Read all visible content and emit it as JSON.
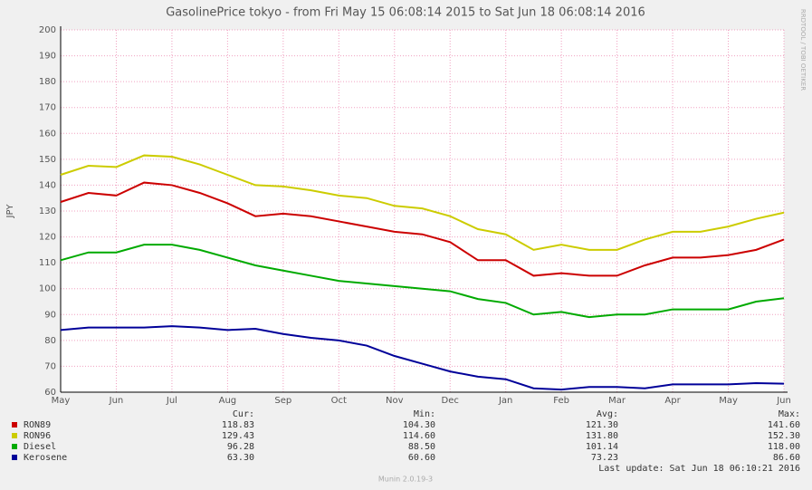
{
  "chart_data": {
    "type": "line",
    "title": "GasolinePrice tokyo - from Fri May 15 06:08:14 2015 to Sat Jun 18 06:08:14 2016",
    "y_label": "JPY",
    "side_note": "RRDTOOL / TOBI OETIKER",
    "footer": "Munin 2.0.19-3",
    "last_update": "Last update:  Sat Jun 18 06:10:21 2016",
    "month_labels": [
      "May",
      "Jun",
      "Jul",
      "Aug",
      "Sep",
      "Oct",
      "Nov",
      "Dec",
      "Jan",
      "Feb",
      "Mar",
      "Apr",
      "May",
      "Jun"
    ],
    "ylim": [
      60,
      200
    ],
    "yticks": [
      60,
      70,
      80,
      90,
      100,
      110,
      120,
      130,
      140,
      150,
      160,
      170,
      180,
      190,
      200
    ],
    "grid": true,
    "legend_headers": [
      "Cur:",
      "Min:",
      "Avg:",
      "Max:"
    ],
    "series": [
      {
        "name": "RON89",
        "color": "#cc0000",
        "values": [
          133.5,
          137,
          136,
          141,
          140,
          137,
          133,
          128,
          129,
          128,
          126,
          124,
          122,
          121,
          118,
          111,
          111,
          105,
          106,
          105,
          105,
          109,
          112,
          112,
          113,
          115,
          119
        ],
        "stats": [
          "118.83",
          "104.30",
          "121.30",
          "141.60"
        ]
      },
      {
        "name": "RON96",
        "color": "#cccc00",
        "values": [
          144,
          147.5,
          147,
          151.5,
          151,
          148,
          144,
          140,
          139.5,
          138,
          136,
          135,
          132,
          131,
          128,
          123,
          121,
          115,
          117,
          115,
          115,
          119,
          122,
          122,
          124,
          127,
          129.4
        ],
        "stats": [
          "129.43",
          "114.60",
          "131.80",
          "152.30"
        ]
      },
      {
        "name": "Diesel",
        "color": "#00aa00",
        "values": [
          111,
          114,
          114,
          117,
          117,
          115,
          112,
          109,
          107,
          105,
          103,
          102,
          101,
          100,
          99,
          96,
          94.5,
          90,
          91,
          89,
          90,
          90,
          92,
          92,
          92,
          95,
          96.3
        ],
        "stats": [
          "96.28",
          "88.50",
          "101.14",
          "118.00"
        ]
      },
      {
        "name": "Kerosene",
        "color": "#000099",
        "values": [
          84,
          85,
          85,
          85,
          85.5,
          85,
          84,
          84.5,
          82.5,
          81,
          80,
          78,
          74,
          71,
          68,
          66,
          65,
          61.5,
          61,
          62,
          62,
          61.5,
          63,
          63,
          63,
          63.5,
          63.3
        ],
        "stats": [
          "63.30",
          "60.60",
          "73.23",
          "86.60"
        ]
      }
    ]
  }
}
